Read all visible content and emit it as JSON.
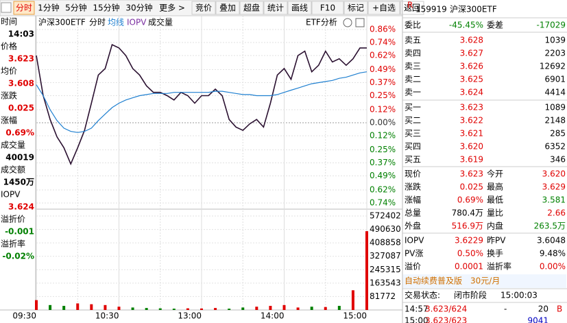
{
  "toolbar": {
    "tabs": [
      "分时",
      "1分钟",
      "5分钟",
      "15分钟",
      "30分钟",
      "更多 >"
    ],
    "buttons": [
      "竞价",
      "叠加",
      "超盘",
      "统计",
      "画线",
      "F10",
      "标记",
      "+自选",
      "返回"
    ]
  },
  "info_panel": [
    {
      "label": "时间",
      "value": "14:03",
      "color": "#000000"
    },
    {
      "label": "价格",
      "value": "3.623",
      "color": "#e00000"
    },
    {
      "label": "均价",
      "value": "3.608",
      "color": "#e00000"
    },
    {
      "label": "涨跌",
      "value": "0.025",
      "color": "#e00000"
    },
    {
      "label": "涨幅",
      "value": "0.69%",
      "color": "#e00000"
    },
    {
      "label": "成交量",
      "value": "40019",
      "color": "#000000"
    },
    {
      "label": "成交额",
      "value": "1450万",
      "color": "#000000"
    },
    {
      "label": "IOPV",
      "value": "3.624",
      "color": "#e00000"
    },
    {
      "label": "溢折价",
      "value": "-0.001",
      "color": "#008000"
    },
    {
      "label": "溢折率",
      "value": "-0.02%",
      "color": "#008000"
    }
  ],
  "chart_header": {
    "name": "沪深300ETF",
    "mode": "分时",
    "avg": "均线",
    "iopv": "IOPV",
    "volume": "成交量",
    "analysis": "ETF分析"
  },
  "chart_data": {
    "type": "line",
    "x": [
      0,
      5,
      10,
      15,
      20,
      25,
      30,
      35,
      40,
      45,
      50,
      55,
      60,
      65,
      70,
      75,
      80,
      85,
      90,
      95,
      100,
      105,
      110,
      115,
      120,
      125,
      130,
      135,
      140,
      145,
      150,
      155,
      160,
      165,
      170,
      175,
      180,
      185,
      190,
      195,
      200,
      205,
      210,
      215,
      220,
      225,
      230,
      235,
      240
    ],
    "xlim": [
      0,
      240
    ],
    "xticks": [
      {
        "value": 0,
        "label": "09:30"
      },
      {
        "value": 60,
        "label": "10:30"
      },
      {
        "value": 120,
        "label": "13:00"
      },
      {
        "value": 180,
        "label": "14:00"
      },
      {
        "value": 240,
        "label": "15:00"
      }
    ],
    "series": [
      {
        "color": "#2a1030",
        "values": [
          0.62,
          0.25,
          0.03,
          -0.13,
          -0.23,
          -0.38,
          -0.23,
          -0.07,
          0.18,
          0.44,
          0.5,
          0.72,
          0.69,
          0.62,
          0.5,
          0.44,
          0.34,
          0.28,
          0.28,
          0.25,
          0.21,
          0.28,
          0.25,
          0.18,
          0.25,
          0.25,
          0.31,
          0.25,
          0.03,
          -0.04,
          -0.07,
          -0.01,
          0.03,
          -0.04,
          0.18,
          0.44,
          0.5,
          0.4,
          0.62,
          0.66,
          0.47,
          0.53,
          0.66,
          0.56,
          0.59,
          0.53,
          0.59,
          0.69,
          0.69
        ]
      },
      {
        "color": "#1e7fd0",
        "values": [
          0.35,
          0.25,
          0.12,
          0.02,
          -0.05,
          -0.08,
          -0.09,
          -0.08,
          -0.05,
          0.02,
          0.08,
          0.14,
          0.18,
          0.21,
          0.23,
          0.25,
          0.26,
          0.27,
          0.27,
          0.27,
          0.28,
          0.28,
          0.28,
          0.28,
          0.28,
          0.28,
          0.29,
          0.29,
          0.28,
          0.27,
          0.26,
          0.26,
          0.25,
          0.25,
          0.25,
          0.26,
          0.28,
          0.3,
          0.32,
          0.34,
          0.36,
          0.37,
          0.38,
          0.39,
          0.41,
          0.42,
          0.44,
          0.46,
          0.47
        ]
      }
    ],
    "ylim": [
      -0.74,
      0.86
    ],
    "yticks": [
      {
        "value": 0.86,
        "label": "0.86%"
      },
      {
        "value": 0.74,
        "label": "0.74%"
      },
      {
        "value": 0.62,
        "label": "0.62%"
      },
      {
        "value": 0.49,
        "label": "0.49%"
      },
      {
        "value": 0.37,
        "label": "0.37%"
      },
      {
        "value": 0.25,
        "label": "0.25%"
      },
      {
        "value": 0.12,
        "label": "0.12%"
      },
      {
        "value": 0,
        "label": "0.00%"
      },
      {
        "value": -0.12,
        "label": "0.12%"
      },
      {
        "value": -0.25,
        "label": "0.25%"
      },
      {
        "value": -0.37,
        "label": "0.37%"
      },
      {
        "value": -0.49,
        "label": "0.49%"
      },
      {
        "value": -0.62,
        "label": "0.62%"
      },
      {
        "value": -0.74,
        "label": "0.74%"
      }
    ],
    "grid": true,
    "volume": {
      "x": [
        0,
        10,
        20,
        30,
        40,
        50,
        60,
        70,
        80,
        90,
        100,
        110,
        120,
        130,
        140,
        150,
        160,
        170,
        180,
        190,
        200,
        210,
        220,
        230,
        240
      ],
      "values": [
        60000,
        30000,
        25000,
        40000,
        35000,
        30000,
        20000,
        15000,
        12000,
        10000,
        8000,
        10000,
        9000,
        12000,
        8000,
        15000,
        20000,
        25000,
        30000,
        15000,
        20000,
        18000,
        25000,
        120000,
        480000
      ],
      "colors": [
        "#e00000",
        "#008000",
        "#008000",
        "#e00000",
        "#e00000",
        "#e00000",
        "#e00000",
        "#008000",
        "#008000",
        "#008000",
        "#008000",
        "#e00000",
        "#e00000",
        "#e00000",
        "#008000",
        "#008000",
        "#e00000",
        "#e00000",
        "#e00000",
        "#e00000",
        "#008000",
        "#e00000",
        "#008000",
        "#e00000",
        "#e00000"
      ],
      "ylim": [
        0,
        572402
      ],
      "yticks": [
        572402,
        490630,
        408858,
        327087,
        245315,
        163543,
        81772
      ]
    }
  },
  "quote": {
    "code": "159919",
    "name": "沪深300ETF",
    "summary": [
      {
        "label": "委比",
        "value": "-45.45%",
        "color": "#008000"
      },
      {
        "label": "委差",
        "value": "-17029",
        "color": "#008000"
      }
    ],
    "asks": [
      {
        "label": "卖五",
        "price": "3.628",
        "volume": "1039"
      },
      {
        "label": "卖四",
        "price": "3.627",
        "volume": "2203"
      },
      {
        "label": "卖三",
        "price": "3.626",
        "volume": "12692"
      },
      {
        "label": "卖二",
        "price": "3.625",
        "volume": "6901"
      },
      {
        "label": "卖一",
        "price": "3.624",
        "volume": "4414"
      }
    ],
    "bids": [
      {
        "label": "买一",
        "price": "3.623",
        "volume": "1089"
      },
      {
        "label": "买二",
        "price": "3.622",
        "volume": "2148"
      },
      {
        "label": "买三",
        "price": "3.621",
        "volume": "285"
      },
      {
        "label": "买四",
        "price": "3.620",
        "volume": "6352"
      },
      {
        "label": "买五",
        "price": "3.619",
        "volume": "346"
      }
    ],
    "stats": [
      {
        "label": "现价",
        "value": "3.623",
        "color": "#e00000"
      },
      {
        "label": "今开",
        "value": "3.620",
        "color": "#e00000"
      },
      {
        "label": "涨跌",
        "value": "0.025",
        "color": "#e00000"
      },
      {
        "label": "最高",
        "value": "3.629",
        "color": "#e00000"
      },
      {
        "label": "涨幅",
        "value": "0.69%",
        "color": "#e00000"
      },
      {
        "label": "最低",
        "value": "3.581",
        "color": "#008000"
      },
      {
        "label": "总量",
        "value": "780.4万",
        "color": "#000000"
      },
      {
        "label": "量比",
        "value": "2.66",
        "color": "#e00000"
      },
      {
        "label": "外盘",
        "value": "516.9万",
        "color": "#e00000"
      },
      {
        "label": "内盘",
        "value": "263.5万",
        "color": "#008000"
      }
    ],
    "iopv_stats": [
      {
        "label": "IOPV",
        "value": "3.6229",
        "color": "#e00000"
      },
      {
        "label": "昨PV",
        "value": "3.6048",
        "color": "#000000"
      },
      {
        "label": "PV涨",
        "value": "0.50%",
        "color": "#e00000"
      },
      {
        "label": "换手",
        "value": "9.48%",
        "color": "#000000"
      },
      {
        "label": "溢价",
        "value": "0.0001",
        "color": "#e00000"
      },
      {
        "label": "溢折率",
        "value": "0.00%",
        "color": "#e00000"
      }
    ],
    "banner": "自动续费普及版　30元/月",
    "status": {
      "label": "交易状态:",
      "value": "闭市阶段",
      "time": "15:00:03"
    },
    "trades": [
      {
        "time": "14:57",
        "price": "3.623/624",
        "sep": "-",
        "volume": "20",
        "side": "B"
      },
      {
        "time": "15:00",
        "price": "3.623/623",
        "volume": "9041"
      }
    ]
  }
}
